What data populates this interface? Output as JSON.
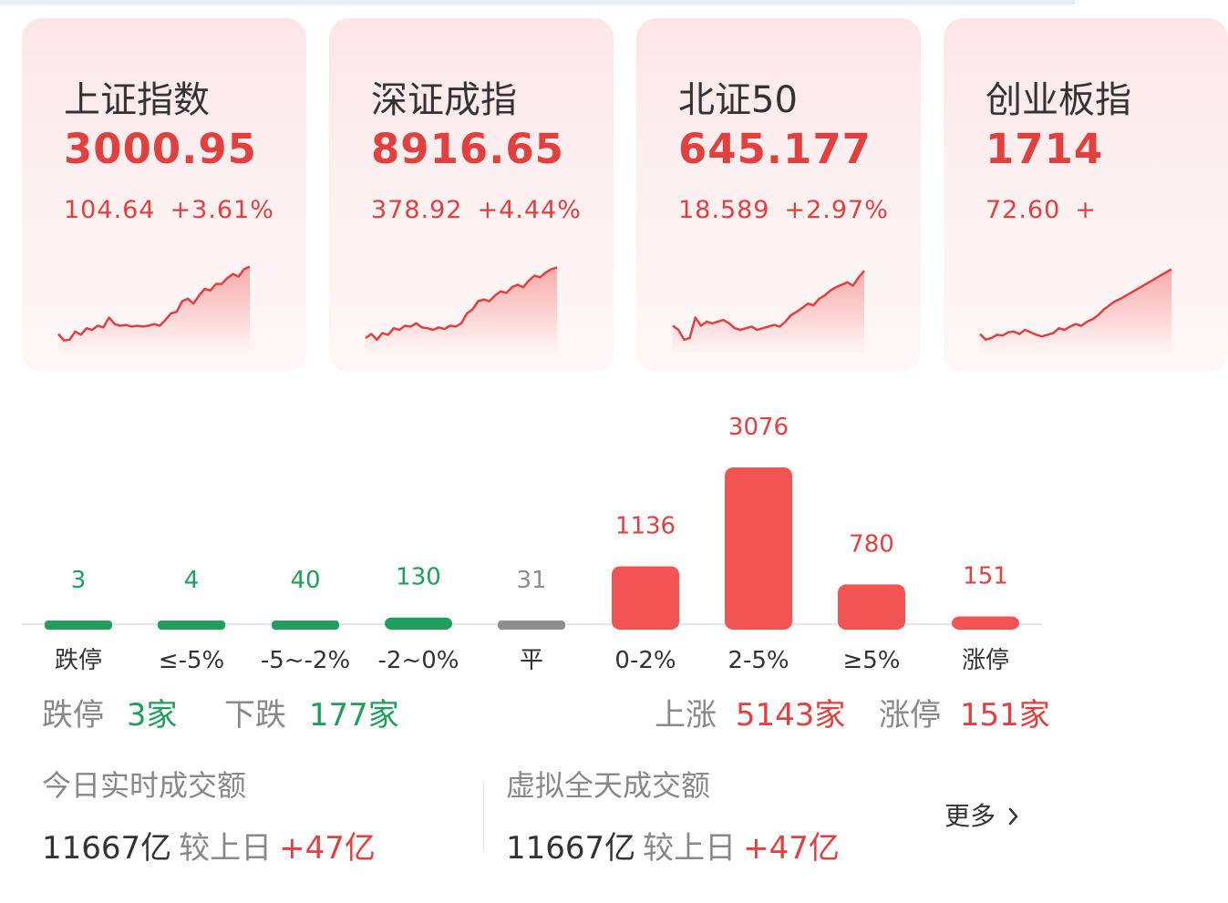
{
  "cards": [
    {
      "name": "上证指数",
      "value": "3000.95",
      "change": "104.64",
      "pct": "+3.61%",
      "spark": [
        0.15,
        0.07,
        0.08,
        0.18,
        0.14,
        0.22,
        0.2,
        0.25,
        0.23,
        0.35,
        0.27,
        0.25,
        0.26,
        0.24,
        0.25,
        0.24,
        0.25,
        0.27,
        0.25,
        0.32,
        0.4,
        0.42,
        0.55,
        0.58,
        0.52,
        0.62,
        0.7,
        0.68,
        0.76,
        0.76,
        0.83,
        0.88,
        0.85,
        0.94,
        0.97
      ]
    },
    {
      "name": "深证成指",
      "value": "8916.65",
      "change": "378.92",
      "pct": "+4.44%",
      "spark": [
        0.1,
        0.15,
        0.08,
        0.16,
        0.14,
        0.22,
        0.2,
        0.25,
        0.24,
        0.28,
        0.23,
        0.22,
        0.2,
        0.23,
        0.21,
        0.25,
        0.24,
        0.28,
        0.4,
        0.45,
        0.55,
        0.57,
        0.55,
        0.62,
        0.67,
        0.65,
        0.72,
        0.75,
        0.72,
        0.8,
        0.86,
        0.84,
        0.9,
        0.94,
        0.96
      ]
    },
    {
      "name": "北证50",
      "value": "645.177",
      "change": "18.589",
      "pct": "+2.97%",
      "spark": [
        0.25,
        0.2,
        0.08,
        0.1,
        0.35,
        0.25,
        0.3,
        0.28,
        0.3,
        0.32,
        0.28,
        0.22,
        0.2,
        0.22,
        0.24,
        0.2,
        0.22,
        0.24,
        0.26,
        0.24,
        0.3,
        0.38,
        0.42,
        0.47,
        0.52,
        0.5,
        0.58,
        0.62,
        0.68,
        0.72,
        0.75,
        0.78,
        0.74,
        0.84,
        0.92
      ]
    },
    {
      "name": "创业板指",
      "value": "1714",
      "change": "72.60",
      "pct": "+",
      "spark": [
        0.15,
        0.08,
        0.1,
        0.14,
        0.13,
        0.17,
        0.18,
        0.15,
        0.2,
        0.17,
        0.14,
        0.12,
        0.14,
        0.16,
        0.22,
        0.2,
        0.24,
        0.27,
        0.25,
        0.3,
        0.33,
        0.38,
        0.45,
        0.5,
        0.55,
        0.58,
        0.62,
        0.66,
        0.7,
        0.74,
        0.78,
        0.82,
        0.86,
        0.9,
        0.94
      ]
    }
  ],
  "chart_data": {
    "type": "bar",
    "categories": [
      "跌停",
      "≤-5%",
      "-5~-2%",
      "-2~0%",
      "平",
      "0-2%",
      "2-5%",
      "≥5%",
      "涨停"
    ],
    "values": [
      3,
      4,
      40,
      130,
      31,
      1136,
      3076,
      780,
      151
    ],
    "value_labels": [
      "3",
      "4",
      "40",
      "130",
      "31",
      "1136",
      "3076",
      "780",
      "151"
    ],
    "colors": [
      "#1f9e5c",
      "#1f9e5c",
      "#1f9e5c",
      "#1f9e5c",
      "#8e8e8e",
      "#f25454",
      "#f25454",
      "#f25454",
      "#f25454"
    ],
    "label_colors": [
      "#1f9e5c",
      "#1f9e5c",
      "#1f9e5c",
      "#1f9e5c",
      "#8e8e8e",
      "#e2403f",
      "#e2403f",
      "#e2403f",
      "#e2403f"
    ]
  },
  "stats": {
    "limit_down_label": "跌停",
    "limit_down_value": "3家",
    "down_label": "下跌",
    "down_value": "177家",
    "up_label": "上涨",
    "up_value": "5143家",
    "limit_up_label": "涨停",
    "limit_up_value": "151家"
  },
  "turnover": {
    "today_title": "今日实时成交额",
    "today_amount": "11667亿",
    "today_compare": "较上日",
    "today_delta": "+47亿",
    "fullday_title": "虚拟全天成交额",
    "fullday_amount": "11667亿",
    "fullday_compare": "较上日",
    "fullday_delta": "+47亿",
    "more_label": "更多",
    "more_icon": "chevron-right-icon"
  }
}
